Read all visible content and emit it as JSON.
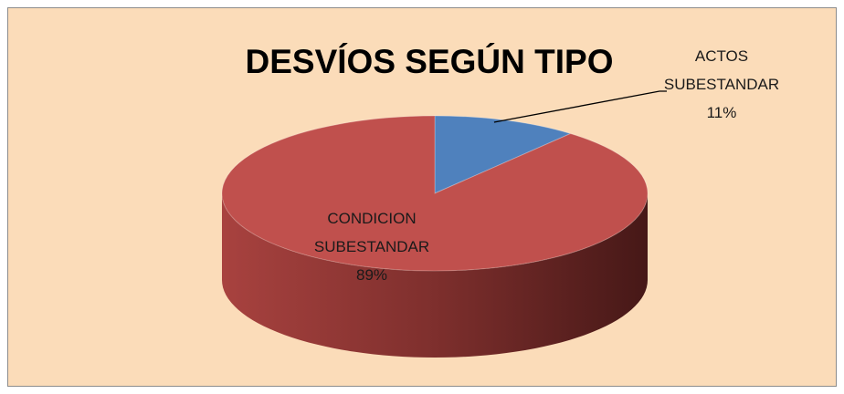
{
  "chart_data": {
    "type": "pie",
    "title": "DESVÍOS SEGÚN TIPO",
    "categories": [
      "ACTOS SUBESTANDAR",
      "CONDICION SUBESTANDAR"
    ],
    "values": [
      11,
      89
    ],
    "value_labels": [
      "11%",
      "89%"
    ],
    "colors": [
      "#4f81bd",
      "#c0504d"
    ]
  }
}
